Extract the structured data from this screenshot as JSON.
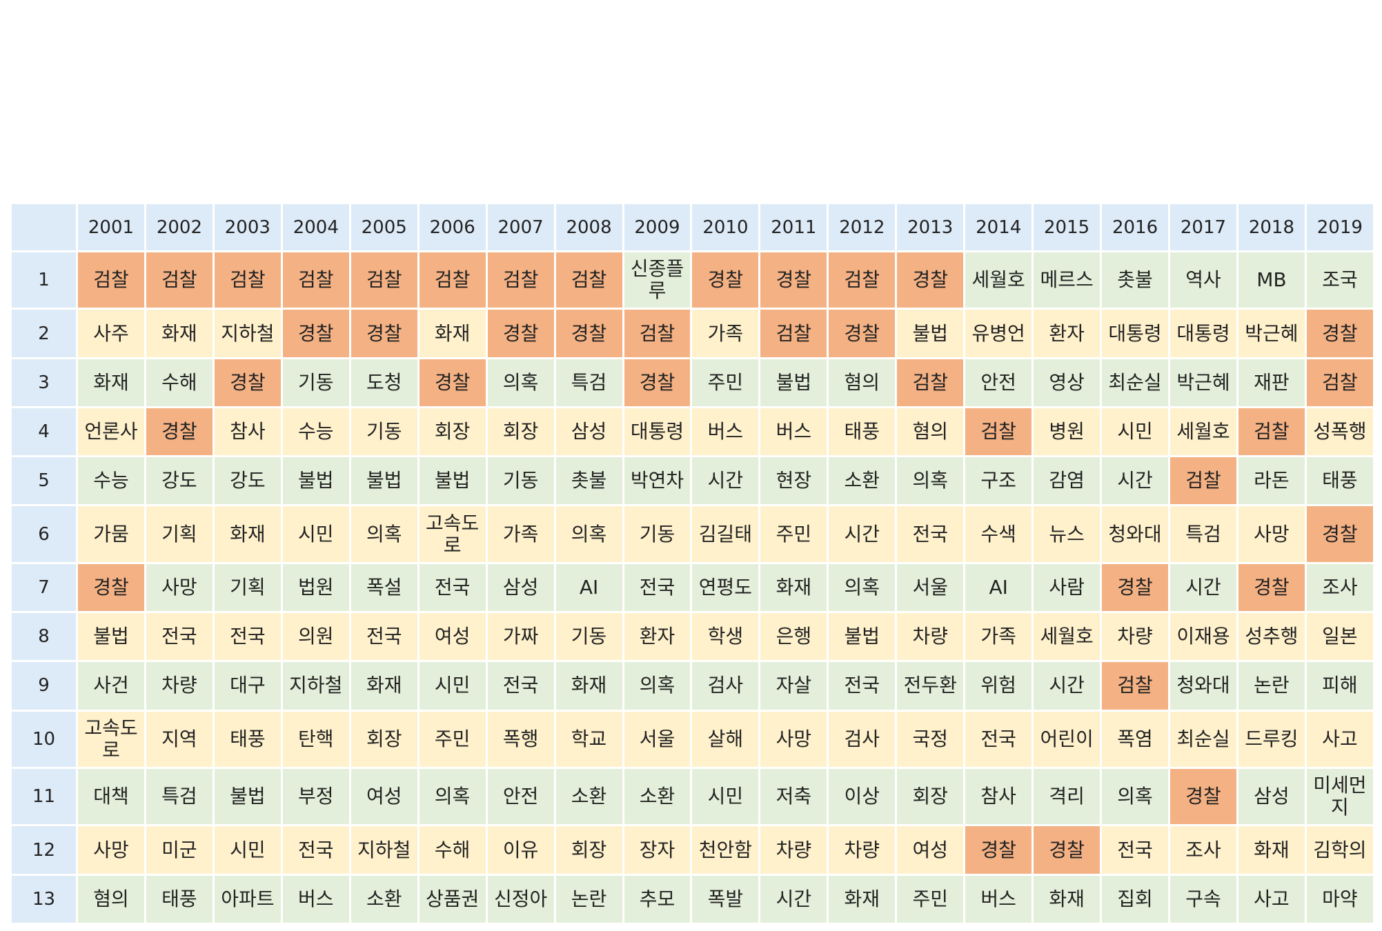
{
  "chart_data": {
    "type": "table",
    "columns": [
      "",
      "2001",
      "2002",
      "2003",
      "2004",
      "2005",
      "2006",
      "2007",
      "2008",
      "2009",
      "2010",
      "2011",
      "2012",
      "2013",
      "2014",
      "2015",
      "2016",
      "2017",
      "2018",
      "2019"
    ],
    "rows": [
      {
        "rank": "1",
        "cells": [
          "검찰",
          "검찰",
          "검찰",
          "검찰",
          "검찰",
          "검찰",
          "검찰",
          "검찰",
          "신종플루",
          "경찰",
          "경찰",
          "검찰",
          "경찰",
          "세월호",
          "메르스",
          "촛불",
          "역사",
          "MB",
          "조국"
        ]
      },
      {
        "rank": "2",
        "cells": [
          "사주",
          "화재",
          "지하철",
          "경찰",
          "경찰",
          "화재",
          "경찰",
          "경찰",
          "검찰",
          "가족",
          "검찰",
          "경찰",
          "불법",
          "유병언",
          "환자",
          "대통령",
          "대통령",
          "박근혜",
          "경찰"
        ]
      },
      {
        "rank": "3",
        "cells": [
          "화재",
          "수해",
          "경찰",
          "기동",
          "도청",
          "경찰",
          "의혹",
          "특검",
          "경찰",
          "주민",
          "불법",
          "혐의",
          "검찰",
          "안전",
          "영상",
          "최순실",
          "박근혜",
          "재판",
          "검찰"
        ]
      },
      {
        "rank": "4",
        "cells": [
          "언론사",
          "경찰",
          "참사",
          "수능",
          "기동",
          "회장",
          "회장",
          "삼성",
          "대통령",
          "버스",
          "버스",
          "태풍",
          "혐의",
          "검찰",
          "병원",
          "시민",
          "세월호",
          "검찰",
          "성폭행"
        ]
      },
      {
        "rank": "5",
        "cells": [
          "수능",
          "강도",
          "강도",
          "불법",
          "불법",
          "불법",
          "기동",
          "촛불",
          "박연차",
          "시간",
          "현장",
          "소환",
          "의혹",
          "구조",
          "감염",
          "시간",
          "검찰",
          "라돈",
          "태풍"
        ]
      },
      {
        "rank": "6",
        "cells": [
          "가뭄",
          "기획",
          "화재",
          "시민",
          "의혹",
          "고속도로",
          "가족",
          "의혹",
          "기동",
          "김길태",
          "주민",
          "시간",
          "전국",
          "수색",
          "뉴스",
          "청와대",
          "특검",
          "사망",
          "경찰"
        ]
      },
      {
        "rank": "7",
        "cells": [
          "경찰",
          "사망",
          "기획",
          "법원",
          "폭설",
          "전국",
          "삼성",
          "AI",
          "전국",
          "연평도",
          "화재",
          "의혹",
          "서울",
          "AI",
          "사람",
          "경찰",
          "시간",
          "경찰",
          "조사"
        ]
      },
      {
        "rank": "8",
        "cells": [
          "불법",
          "전국",
          "전국",
          "의원",
          "전국",
          "여성",
          "가짜",
          "기동",
          "환자",
          "학생",
          "은행",
          "불법",
          "차량",
          "가족",
          "세월호",
          "차량",
          "이재용",
          "성추행",
          "일본"
        ]
      },
      {
        "rank": "9",
        "cells": [
          "사건",
          "차량",
          "대구",
          "지하철",
          "화재",
          "시민",
          "전국",
          "화재",
          "의혹",
          "검사",
          "자살",
          "전국",
          "전두환",
          "위험",
          "시간",
          "검찰",
          "청와대",
          "논란",
          "피해"
        ]
      },
      {
        "rank": "10",
        "cells": [
          "고속도로",
          "지역",
          "태풍",
          "탄핵",
          "회장",
          "주민",
          "폭행",
          "학교",
          "서울",
          "살해",
          "사망",
          "검사",
          "국정",
          "전국",
          "어린이",
          "폭염",
          "최순실",
          "드루킹",
          "사고"
        ]
      },
      {
        "rank": "11",
        "cells": [
          "대책",
          "특검",
          "불법",
          "부정",
          "여성",
          "의혹",
          "안전",
          "소환",
          "소환",
          "시민",
          "저축",
          "이상",
          "회장",
          "참사",
          "격리",
          "의혹",
          "경찰",
          "삼성",
          "미세먼지"
        ]
      },
      {
        "rank": "12",
        "cells": [
          "사망",
          "미군",
          "시민",
          "전국",
          "지하철",
          "수해",
          "이유",
          "회장",
          "장자",
          "천안함",
          "차량",
          "차량",
          "여성",
          "경찰",
          "경찰",
          "전국",
          "조사",
          "화재",
          "김학의"
        ]
      },
      {
        "rank": "13",
        "cells": [
          "혐의",
          "태풍",
          "아파트",
          "버스",
          "소환",
          "상품권",
          "신정아",
          "논란",
          "추모",
          "폭발",
          "시간",
          "화재",
          "주민",
          "버스",
          "화재",
          "집회",
          "구속",
          "사고",
          "마약"
        ]
      }
    ],
    "highlight_words": [
      "검찰",
      "경찰"
    ],
    "colors": {
      "header": "#ddeaf7",
      "row_odd": "#e3efda",
      "row_even": "#fff1cc",
      "highlight": "#f4b183"
    }
  }
}
